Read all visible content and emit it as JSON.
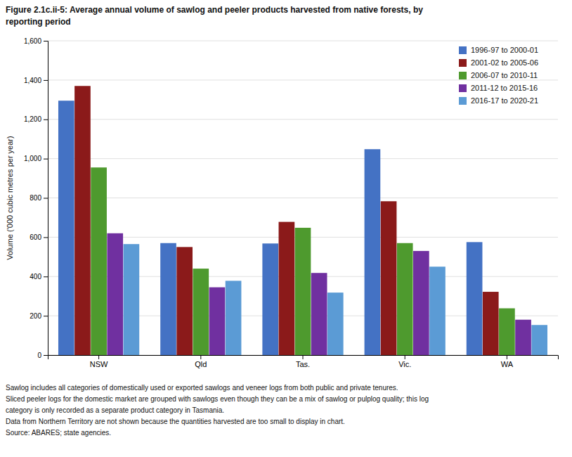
{
  "chart_data": {
    "type": "bar",
    "title": "Figure 2.1c.ii-5: Average annual volume of sawlog and peeler products harvested from native forests, by",
    "subtitle": "reporting period",
    "ylabel": "Volume ('000 cubic metres per year)",
    "categories": [
      "NSW",
      "Qld",
      "Tas.",
      "Vic.",
      "WA"
    ],
    "series": [
      {
        "name": "1996-97 to 2000-01",
        "color": "#4472C4",
        "values": [
          1295,
          570,
          568,
          1048,
          575
        ]
      },
      {
        "name": "2001-02 to 2005-06",
        "color": "#8B1A1A",
        "values": [
          1370,
          550,
          678,
          783,
          322
        ]
      },
      {
        "name": "2006-07 to 2010-11",
        "color": "#4E9A2E",
        "values": [
          955,
          440,
          648,
          570,
          238
        ]
      },
      {
        "name": "2011-12 to 2015-16",
        "color": "#7030A0",
        "values": [
          620,
          345,
          418,
          530,
          180
        ]
      },
      {
        "name": "2016-17 to 2020-21",
        "color": "#5B9BD5",
        "values": [
          565,
          378,
          318,
          450,
          153
        ]
      }
    ],
    "ylim": [
      0,
      1600
    ],
    "yticks": [
      0,
      200,
      400,
      600,
      800,
      {
        "value": 1000,
        "label": "1,000"
      },
      {
        "value": 1200,
        "label": "1,200"
      },
      {
        "value": 1400,
        "label": "1,400"
      },
      {
        "value": 1600,
        "label": "1,600"
      }
    ],
    "grid": true,
    "legend": "upper right",
    "annotations": [
      "Sawlog includes all categories of domestically used or exported sawlogs and veneer logs from both public and private tenures.",
      "Sliced peeler logs for the domestic market are grouped with sawlogs even though they can be a mix of sawlog or pulplog quality; this log",
      "category is only recorded as a separate product category in Tasmania.",
      "Data from Northern Territory are not shown because the quantities harvested are too small to display in chart.",
      "Source: ABARES; state agencies."
    ]
  }
}
